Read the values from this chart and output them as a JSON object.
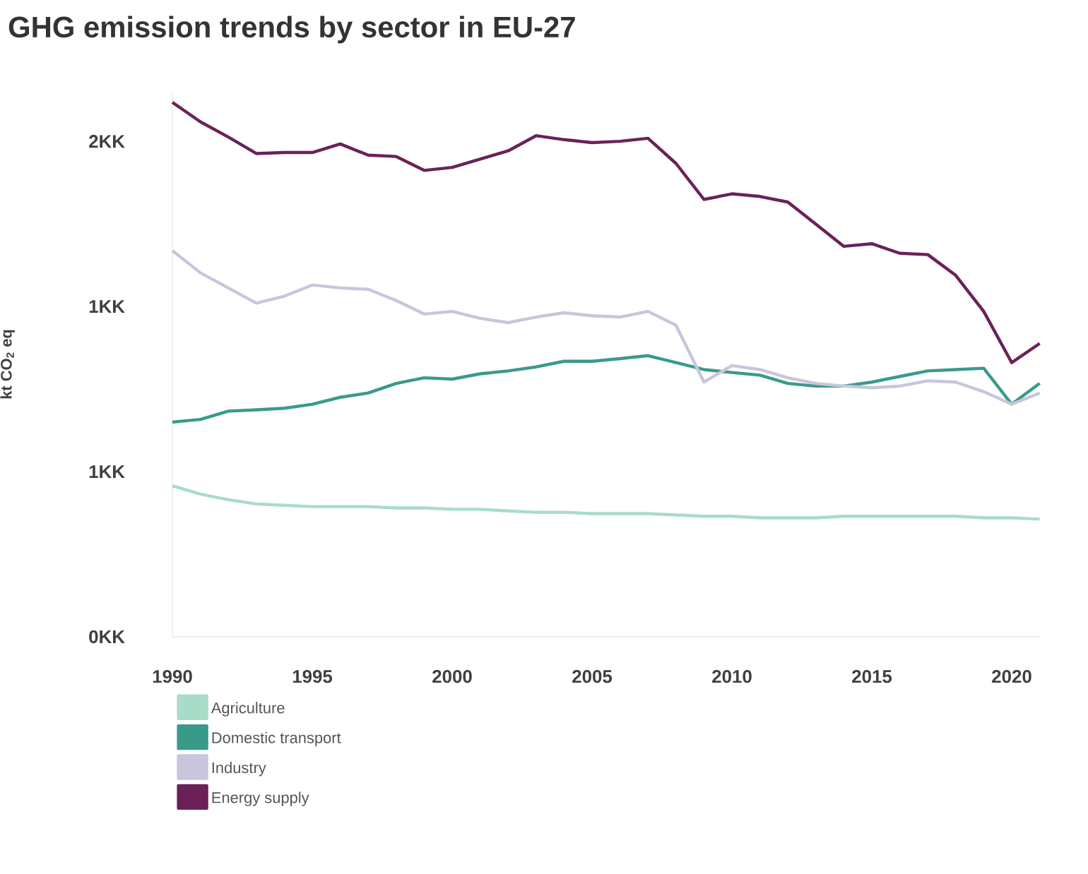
{
  "chart_data": {
    "type": "line",
    "title": "GHG emission trends by sector in EU-27",
    "ylabel": "kt CO$_{2}$ eq",
    "x": [
      1990,
      1991,
      1992,
      1993,
      1994,
      1995,
      1996,
      1997,
      1998,
      1999,
      2000,
      2001,
      2002,
      2003,
      2004,
      2005,
      2006,
      2007,
      2008,
      2009,
      2010,
      2011,
      2012,
      2013,
      2014,
      2015,
      2016,
      2017,
      2018,
      2019,
      2020,
      2021
    ],
    "series": [
      {
        "name": "Agriculture",
        "color": "#a8dcc9",
        "values": [
          0.457,
          0.432,
          0.415,
          0.402,
          0.398,
          0.394,
          0.394,
          0.394,
          0.39,
          0.39,
          0.386,
          0.386,
          0.381,
          0.377,
          0.377,
          0.373,
          0.373,
          0.373,
          0.369,
          0.365,
          0.365,
          0.36,
          0.36,
          0.36,
          0.365,
          0.365,
          0.365,
          0.365,
          0.365,
          0.36,
          0.36,
          0.356
        ]
      },
      {
        "name": "Domestic transport",
        "color": "#3a9a8a",
        "values": [
          0.65,
          0.658,
          0.683,
          0.687,
          0.692,
          0.704,
          0.725,
          0.738,
          0.767,
          0.784,
          0.78,
          0.796,
          0.805,
          0.817,
          0.834,
          0.834,
          0.842,
          0.851,
          0.83,
          0.809,
          0.8,
          0.792,
          0.767,
          0.759,
          0.759,
          0.771,
          0.788,
          0.805,
          0.809,
          0.813,
          0.704,
          0.767
        ]
      },
      {
        "name": "Industry",
        "color": "#c8c6dc",
        "values": [
          1.169,
          1.102,
          1.056,
          1.01,
          1.031,
          1.065,
          1.056,
          1.052,
          1.018,
          0.977,
          0.985,
          0.964,
          0.951,
          0.968,
          0.981,
          0.972,
          0.968,
          0.985,
          0.943,
          0.771,
          0.821,
          0.809,
          0.784,
          0.767,
          0.759,
          0.754,
          0.759,
          0.775,
          0.771,
          0.742,
          0.704,
          0.738
        ]
      },
      {
        "name": "Energy supply",
        "color": "#6b2158",
        "values": [
          1.618,
          1.559,
          1.513,
          1.463,
          1.466,
          1.466,
          1.492,
          1.458,
          1.454,
          1.412,
          1.421,
          1.446,
          1.471,
          1.517,
          1.505,
          1.496,
          1.5,
          1.509,
          1.433,
          1.324,
          1.341,
          1.333,
          1.316,
          1.249,
          1.182,
          1.19,
          1.161,
          1.157,
          1.094,
          0.985,
          0.83,
          0.888
        ]
      }
    ],
    "xlim": [
      1990,
      2021
    ],
    "xticks": [
      1990,
      1995,
      2000,
      2005,
      2010,
      2015,
      2020
    ],
    "ylim": [
      0,
      1.65
    ],
    "yticks": [
      {
        "value": 0,
        "label": "0KK"
      },
      {
        "value": 0.5,
        "label": "1KK"
      },
      {
        "value": 1,
        "label": "1KK"
      },
      {
        "value": 1.5,
        "label": "2KK"
      }
    ],
    "grid": false,
    "legend": "bottom",
    "line_style": "solid",
    "marker": "none"
  }
}
